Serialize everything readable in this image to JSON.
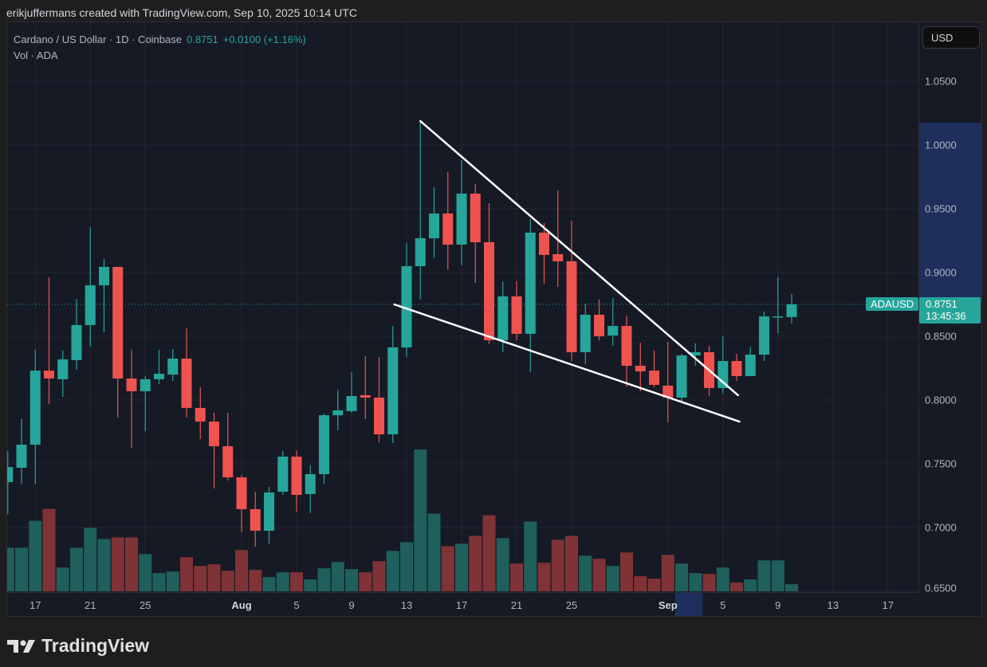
{
  "credit": "erikjuffermans created with TradingView.com, Sep 10, 2025 10:14 UTC",
  "legend": {
    "symbol_line": "Cardano / US Dollar · 1D · Coinbase",
    "last": "0.8751",
    "change": "+0.0100 (+1.16%)",
    "volume_line": "Vol · ADA"
  },
  "currency_button": "USD",
  "price_tag": {
    "symbol": "ADAUSD",
    "price": "0.8751",
    "countdown": "13:45:36"
  },
  "logo_text": "TradingView",
  "colors": {
    "up": "#26a69a",
    "down": "#ef5350",
    "vol_up": "#1f5f5c",
    "vol_down": "#7f3336",
    "background": "#161a25",
    "grid": "#242733",
    "highlight": "#1e2f5e",
    "trendline": "#ffffff"
  },
  "chart_data": {
    "type": "candlestick",
    "title": "Cardano / US Dollar · 1D · Coinbase",
    "start_date": "2025-07-15",
    "end_date": "2025-09-10",
    "ohlc_fields": [
      "open",
      "high",
      "low",
      "close"
    ],
    "ohlc": [
      [
        0.7356,
        0.76,
        0.7106,
        0.7475
      ],
      [
        0.7469,
        0.785,
        0.7338,
        0.765
      ],
      [
        0.765,
        0.8394,
        0.7344,
        0.8231
      ],
      [
        0.8231,
        0.8963,
        0.7969,
        0.8169
      ],
      [
        0.8163,
        0.8388,
        0.8025,
        0.8319
      ],
      [
        0.8313,
        0.8794,
        0.8238,
        0.8588
      ],
      [
        0.8588,
        0.9356,
        0.8419,
        0.89
      ],
      [
        0.89,
        0.9106,
        0.8531,
        0.9044
      ],
      [
        0.9044,
        0.9044,
        0.7863,
        0.8169
      ],
      [
        0.8169,
        0.8394,
        0.7625,
        0.8069
      ],
      [
        0.8069,
        0.8188,
        0.7756,
        0.8163
      ],
      [
        0.8163,
        0.8394,
        0.8125,
        0.8206
      ],
      [
        0.82,
        0.84,
        0.815,
        0.8325
      ],
      [
        0.8325,
        0.8563,
        0.7863,
        0.7938
      ],
      [
        0.7938,
        0.81,
        0.7694,
        0.7831
      ],
      [
        0.7831,
        0.79,
        0.7306,
        0.7638
      ],
      [
        0.7638,
        0.79,
        0.7369,
        0.7394
      ],
      [
        0.7394,
        0.7413,
        0.6963,
        0.7144
      ],
      [
        0.7144,
        0.7281,
        0.685,
        0.6975
      ],
      [
        0.6975,
        0.7319,
        0.6875,
        0.7275
      ],
      [
        0.7281,
        0.76,
        0.7256,
        0.7556
      ],
      [
        0.7556,
        0.7606,
        0.7125,
        0.7256
      ],
      [
        0.7263,
        0.7488,
        0.7113,
        0.7419
      ],
      [
        0.7419,
        0.7894,
        0.7344,
        0.7881
      ],
      [
        0.7881,
        0.8081,
        0.7763,
        0.7919
      ],
      [
        0.7913,
        0.8219,
        0.79,
        0.8031
      ],
      [
        0.8038,
        0.8344,
        0.785,
        0.8019
      ],
      [
        0.8019,
        0.8338,
        0.7669,
        0.7731
      ],
      [
        0.7731,
        0.8581,
        0.7663,
        0.8413
      ],
      [
        0.8413,
        0.9231,
        0.8338,
        0.905
      ],
      [
        0.905,
        1.0188,
        0.8788,
        0.9269
      ],
      [
        0.9269,
        0.9669,
        0.9113,
        0.9463
      ],
      [
        0.9463,
        0.9788,
        0.9025,
        0.9219
      ],
      [
        0.9219,
        0.9881,
        0.9056,
        0.9619
      ],
      [
        0.9619,
        0.9694,
        0.8919,
        0.9238
      ],
      [
        0.9238,
        0.9544,
        0.8438,
        0.8469
      ],
      [
        0.8469,
        0.8931,
        0.8375,
        0.8813
      ],
      [
        0.8813,
        0.8931,
        0.8469,
        0.8519
      ],
      [
        0.8519,
        0.9419,
        0.8219,
        0.9313
      ],
      [
        0.9313,
        0.9388,
        0.8913,
        0.9138
      ],
      [
        0.9144,
        0.9644,
        0.8888,
        0.9088
      ],
      [
        0.9088,
        0.9406,
        0.8306,
        0.8375
      ],
      [
        0.8375,
        0.8756,
        0.8281,
        0.8669
      ],
      [
        0.8669,
        0.8788,
        0.8469,
        0.85
      ],
      [
        0.8506,
        0.88,
        0.8425,
        0.8581
      ],
      [
        0.8581,
        0.8663,
        0.8106,
        0.8269
      ],
      [
        0.8269,
        0.845,
        0.8069,
        0.8225
      ],
      [
        0.8231,
        0.8388,
        0.81,
        0.8119
      ],
      [
        0.8113,
        0.8456,
        0.7825,
        0.8019
      ],
      [
        0.8019,
        0.8363,
        0.7981,
        0.835
      ],
      [
        0.835,
        0.8444,
        0.8269,
        0.8375
      ],
      [
        0.8375,
        0.8425,
        0.8031,
        0.8094
      ],
      [
        0.8094,
        0.85,
        0.805,
        0.8306
      ],
      [
        0.8306,
        0.8363,
        0.815,
        0.8188
      ],
      [
        0.8188,
        0.8419,
        0.8188,
        0.8356
      ],
      [
        0.8356,
        0.8694,
        0.8306,
        0.8656
      ],
      [
        0.8651,
        0.8963,
        0.8525,
        0.8656
      ],
      [
        0.8651,
        0.8831,
        0.86,
        0.8751
      ]
    ],
    "volume_relative": [
      55,
      55,
      89,
      104,
      30,
      55,
      80,
      66,
      68,
      68,
      47,
      23,
      25,
      43,
      32,
      34,
      26,
      52,
      27,
      18,
      24,
      24,
      15,
      29,
      37,
      28,
      24,
      38,
      51,
      62,
      179,
      98,
      57,
      60,
      70,
      96,
      67,
      35,
      88,
      36,
      65,
      70,
      45,
      41,
      32,
      49,
      19,
      16,
      46,
      35,
      23,
      22,
      30,
      11,
      15,
      39,
      39,
      9
    ],
    "ylim": [
      0.65,
      1.075
    ],
    "price_ticks": [
      "1.0500",
      "1.0000",
      "0.9500",
      "0.9000",
      "0.8500",
      "0.8000",
      "0.7500",
      "0.7000",
      "0.6500"
    ],
    "time_ticks": [
      {
        "label": "17",
        "index": 2
      },
      {
        "label": "21",
        "index": 6
      },
      {
        "label": "25",
        "index": 10
      },
      {
        "label": "Aug",
        "index": 17,
        "bold": true
      },
      {
        "label": "5",
        "index": 21
      },
      {
        "label": "9",
        "index": 25
      },
      {
        "label": "13",
        "index": 29
      },
      {
        "label": "17",
        "index": 33
      },
      {
        "label": "21",
        "index": 37
      },
      {
        "label": "25",
        "index": 41
      },
      {
        "label": "Sep",
        "index": 48,
        "bold": true
      },
      {
        "label": "5",
        "index": 52
      },
      {
        "label": "9",
        "index": 56
      },
      {
        "label": "13",
        "index": 60
      },
      {
        "label": "17",
        "index": 64
      }
    ],
    "last_price": 0.8751,
    "highlighted_price_range": [
      0.8751,
      1.0188
    ],
    "highlighted_time_index": [
      49,
      50
    ],
    "trendlines": [
      {
        "name": "upper",
        "from": {
          "index": 30.0,
          "price": 1.0188
        },
        "to": {
          "index": 53.1,
          "price": 0.8038
        }
      },
      {
        "name": "lower",
        "from": {
          "index": 28.1,
          "price": 0.875
        },
        "to": {
          "index": 53.2,
          "price": 0.7831
        }
      }
    ],
    "grid": true
  }
}
